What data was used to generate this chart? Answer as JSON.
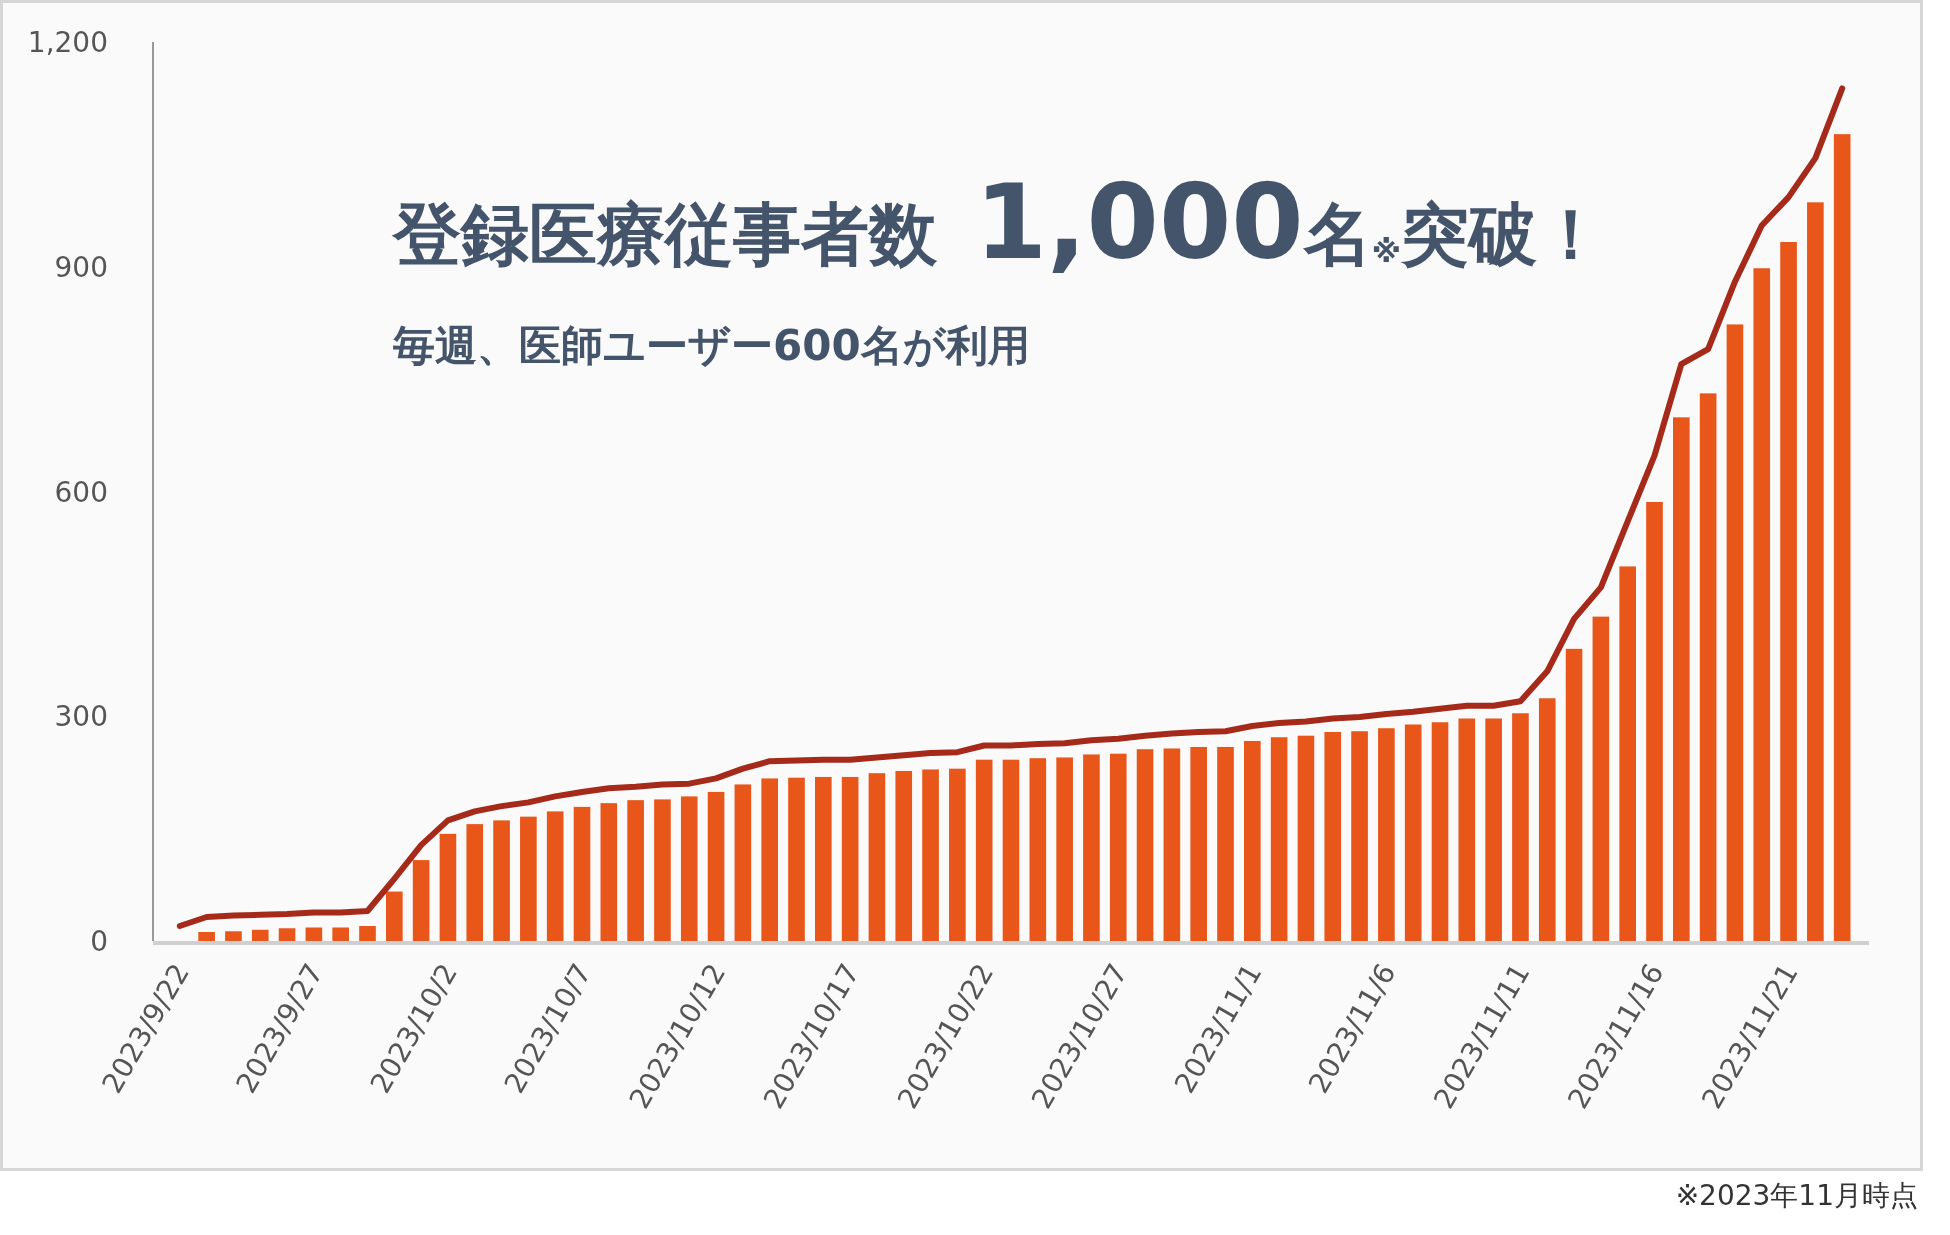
{
  "chart_data": {
    "type": "bar",
    "title": "登録医療従事者数 **1,000**名$_{※}$突破！",
    "subtitle": "毎週、医師ユーザー600名が利用",
    "annotations": [
      "※2023年11月時点"
    ],
    "x": [
      "2023-09-22",
      "2023-09-23",
      "2023-09-24",
      "2023-09-25",
      "2023-09-26",
      "2023-09-27",
      "2023-09-28",
      "2023-09-29",
      "2023-09-30",
      "2023-10-01",
      "2023-10-02",
      "2023-10-03",
      "2023-10-04",
      "2023-10-05",
      "2023-10-06",
      "2023-10-07",
      "2023-10-08",
      "2023-10-09",
      "2023-10-10",
      "2023-10-11",
      "2023-10-12",
      "2023-10-13",
      "2023-10-14",
      "2023-10-15",
      "2023-10-16",
      "2023-10-17",
      "2023-10-18",
      "2023-10-19",
      "2023-10-20",
      "2023-10-21",
      "2023-10-22",
      "2023-10-23",
      "2023-10-24",
      "2023-10-25",
      "2023-10-26",
      "2023-10-27",
      "2023-10-28",
      "2023-10-29",
      "2023-10-30",
      "2023-10-31",
      "2023-11-01",
      "2023-11-02",
      "2023-11-03",
      "2023-11-04",
      "2023-11-05",
      "2023-11-06",
      "2023-11-07",
      "2023-11-08",
      "2023-11-09",
      "2023-11-10",
      "2023-11-11",
      "2023-11-12",
      "2023-11-13",
      "2023-11-14",
      "2023-11-15",
      "2023-11-16",
      "2023-11-17",
      "2023-11-18",
      "2023-11-19",
      "2023-11-20",
      "2023-11-21",
      "2023-11-22",
      "2023-11-23"
    ],
    "series": [
      {
        "color": "#e8561a",
        "values": [
          null,
          12,
          13,
          15,
          17,
          18,
          18,
          20,
          66,
          108,
          143,
          156,
          161,
          166,
          173,
          179,
          184,
          188,
          189,
          193,
          199,
          209,
          217,
          218,
          219,
          219,
          224,
          227,
          229,
          230,
          242,
          242,
          244,
          245,
          249,
          250,
          256,
          257,
          259,
          259,
          267,
          272,
          274,
          279,
          280,
          284,
          289,
          292,
          297,
          297,
          304,
          324,
          390,
          433,
          500,
          586,
          699,
          731,
          823,
          898,
          933,
          986,
          1077
        ]
      },
      {
        "type": "line",
        "color": "#a52a1a",
        "values": [
          20,
          32,
          34,
          35,
          36,
          38,
          38,
          40,
          83,
          128,
          161,
          173,
          180,
          185,
          193,
          199,
          204,
          206,
          209,
          210,
          217,
          230,
          240,
          241,
          242,
          242,
          245,
          248,
          251,
          252,
          261,
          261,
          263,
          264,
          268,
          270,
          274,
          277,
          279,
          280,
          287,
          291,
          293,
          297,
          299,
          303,
          306,
          310,
          314,
          314,
          320,
          360,
          430,
          472,
          560,
          648,
          770,
          790,
          880,
          955,
          993,
          1045,
          1138
        ]
      }
    ],
    "xlim": [
      "2023-09-21",
      "2023-11-24"
    ],
    "xticks": [
      {
        "value": "2023-09-22",
        "label": "2023/9/22"
      },
      {
        "value": "2023-09-27",
        "label": "2023/9/27"
      },
      {
        "value": "2023-10-02",
        "label": "2023/10/2"
      },
      {
        "value": "2023-10-07",
        "label": "2023/10/7"
      },
      {
        "value": "2023-10-12",
        "label": "2023/10/12"
      },
      {
        "value": "2023-10-17",
        "label": "2023/10/17"
      },
      {
        "value": "2023-10-22",
        "label": "2023/10/22"
      },
      {
        "value": "2023-10-27",
        "label": "2023/10/27"
      },
      {
        "value": "2023-11-01",
        "label": "2023/11/1"
      },
      {
        "value": "2023-11-06",
        "label": "2023/11/6"
      },
      {
        "value": "2023-11-11",
        "label": "2023/11/11"
      },
      {
        "value": "2023-11-16",
        "label": "2023/11/16"
      },
      {
        "value": "2023-11-21",
        "label": "2023/11/21"
      }
    ],
    "ylim": [
      0,
      1200
    ],
    "yticks": [
      0,
      300,
      600,
      900,
      {
        "value": 1200,
        "label": "1,200"
      }
    ],
    "grid": false,
    "marker": "none",
    "line_style": "solid"
  }
}
